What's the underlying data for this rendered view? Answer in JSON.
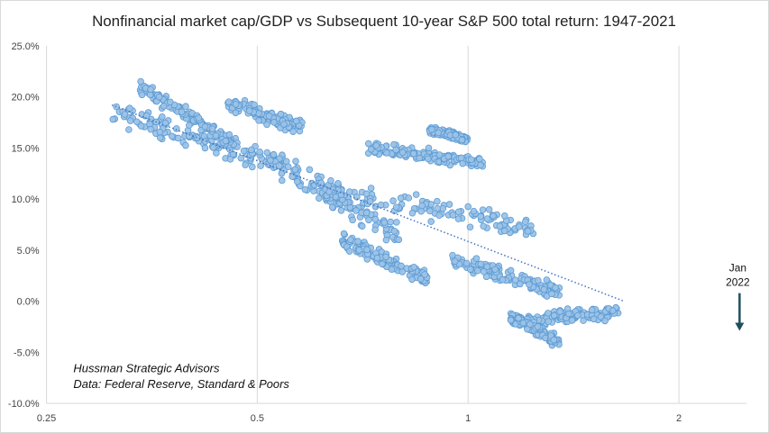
{
  "chart_data": {
    "type": "scatter",
    "title": "Nonfinancial market cap/GDP vs Subsequent 10-year S&P 500 total return: 1947-2021",
    "xlabel": "",
    "ylabel": "",
    "x_scale": "log",
    "xlim": [
      0.25,
      2.5
    ],
    "ylim": [
      -10,
      25
    ],
    "x_ticks": [
      0.25,
      0.5,
      1,
      2
    ],
    "x_tick_labels": [
      "0.25",
      "0.5",
      "1",
      "2"
    ],
    "y_ticks": [
      -10,
      -5,
      0,
      5,
      10,
      15,
      20,
      25
    ],
    "y_tick_labels": [
      "-10.0%",
      "-5.0%",
      "0.0%",
      "5.0%",
      "10.0%",
      "15.0%",
      "20.0%",
      "25.0%"
    ],
    "grid": "vertical gridlines at x ticks",
    "marker_color": "#9dc3e6",
    "marker_edge_color": "#5b9bd5",
    "trendline_color": "#4472c4",
    "trendline": {
      "style": "dotted",
      "x": [
        0.31,
        1.67
      ],
      "y": [
        19.2,
        0.0
      ]
    },
    "clusters": [
      {
        "x": [
          0.31,
          0.55
        ],
        "y": [
          18.5,
          13.2
        ],
        "spread": 1.6
      },
      {
        "x": [
          0.34,
          0.46
        ],
        "y": [
          21.0,
          15.5
        ],
        "spread": 1.0
      },
      {
        "x": [
          0.45,
          0.58
        ],
        "y": [
          19.5,
          17.0
        ],
        "spread": 1.0
      },
      {
        "x": [
          0.5,
          0.8
        ],
        "y": [
          14.5,
          6.5
        ],
        "spread": 1.8
      },
      {
        "x": [
          0.6,
          1.25
        ],
        "y": [
          11.0,
          7.0
        ],
        "spread": 1.5
      },
      {
        "x": [
          0.66,
          0.88
        ],
        "y": [
          6.0,
          2.0
        ],
        "spread": 1.2
      },
      {
        "x": [
          0.72,
          1.05
        ],
        "y": [
          15.0,
          13.5
        ],
        "spread": 0.9
      },
      {
        "x": [
          0.88,
          1.0
        ],
        "y": [
          16.8,
          15.8
        ],
        "spread": 0.5
      },
      {
        "x": [
          0.95,
          1.35
        ],
        "y": [
          4.0,
          1.0
        ],
        "spread": 1.2
      },
      {
        "x": [
          1.15,
          1.65
        ],
        "y": [
          -2.0,
          -1.0
        ],
        "spread": 1.0
      },
      {
        "x": [
          1.15,
          1.35
        ],
        "y": [
          -1.5,
          -4.0
        ],
        "spread": 0.8
      }
    ],
    "annotations": {
      "source_line_1": "Hussman Strategic Advisors",
      "source_line_2": "Data: Federal Reserve, Standard & Poors",
      "callout_line_1": "Jan",
      "callout_line_2": "2022",
      "callout_arrow_color": "#1f4e5f"
    }
  }
}
